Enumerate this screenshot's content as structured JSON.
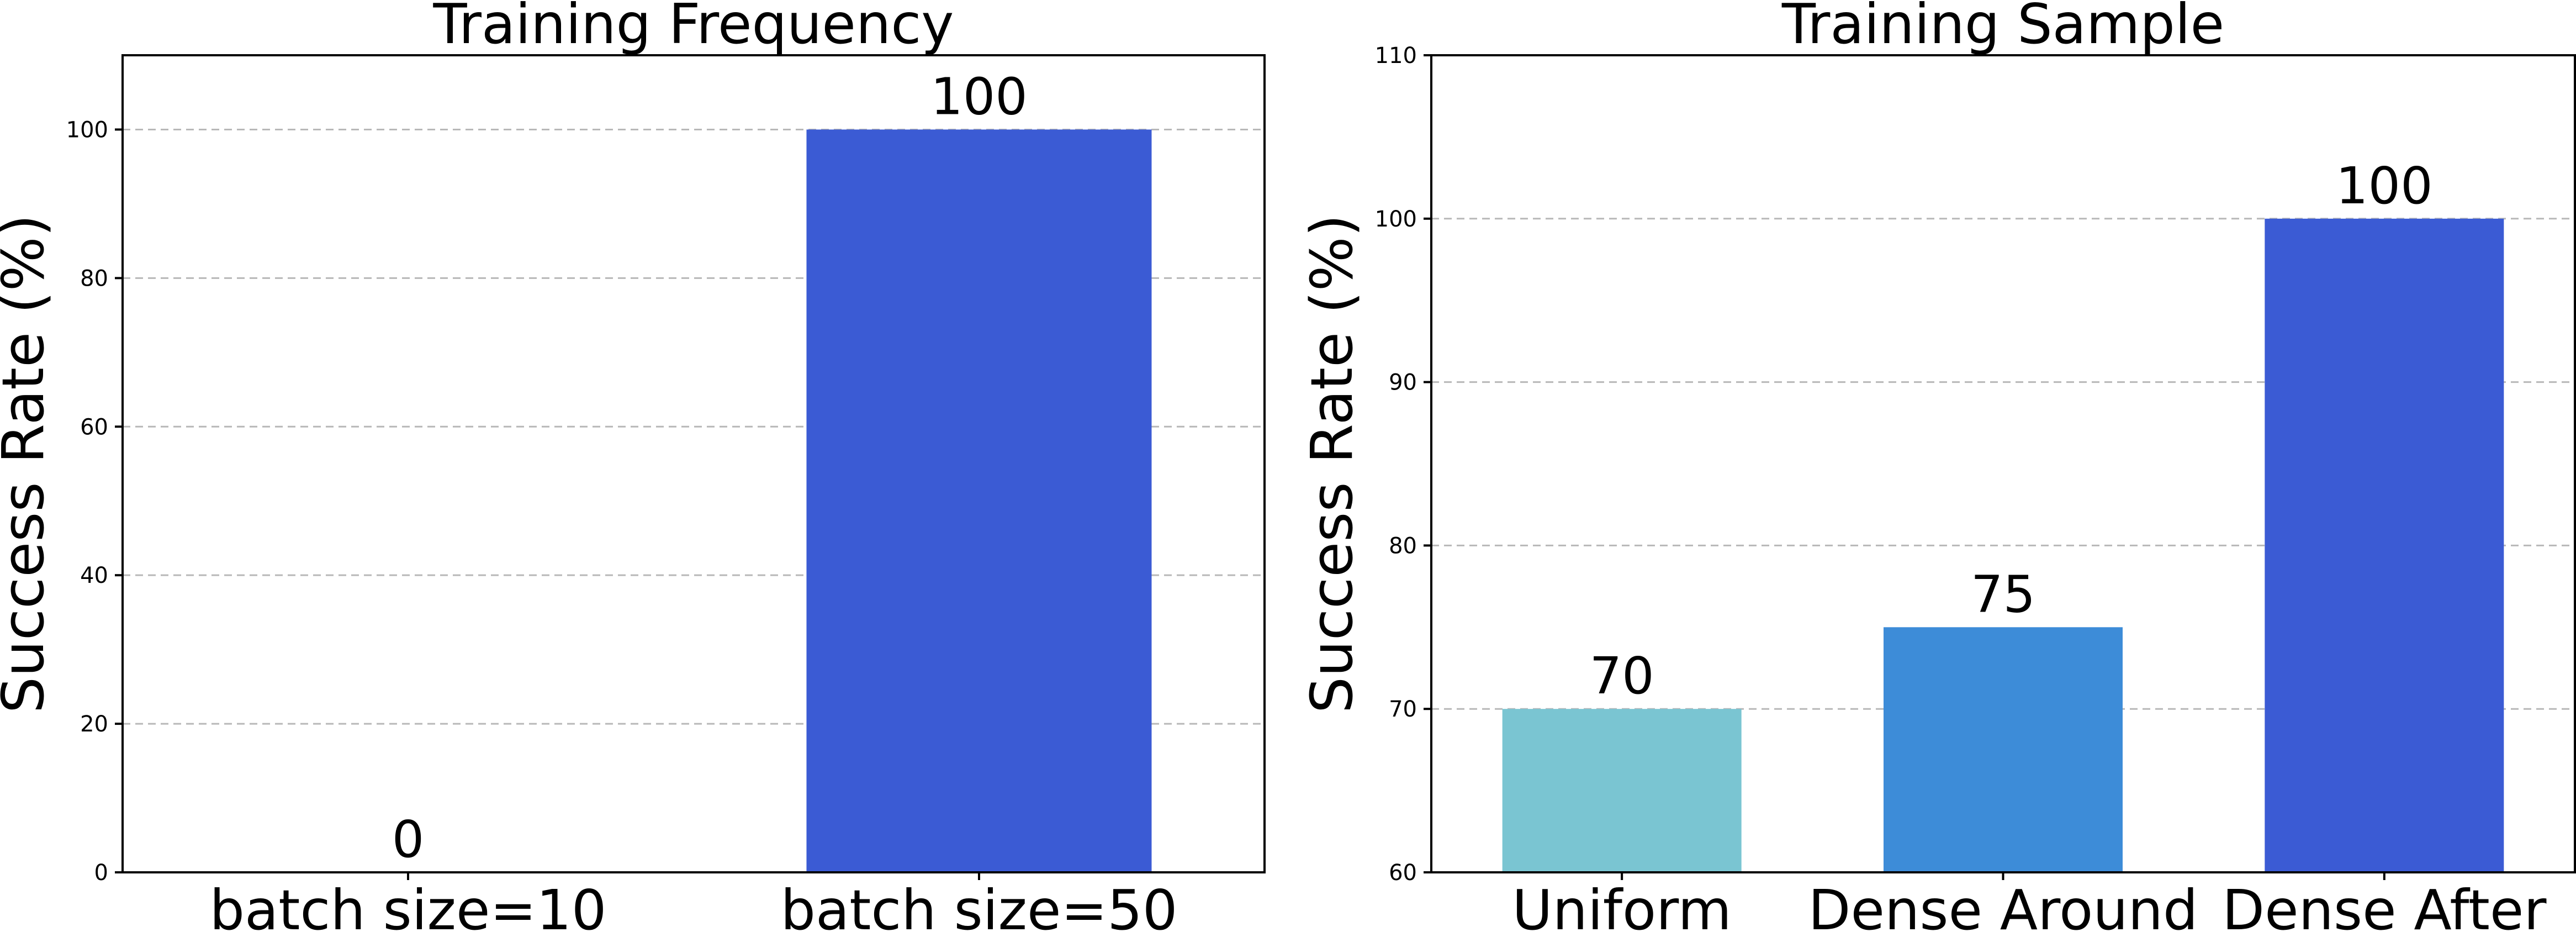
{
  "chart_data": [
    {
      "type": "bar",
      "title": "Training Frequency",
      "xlabel": "",
      "ylabel": "Success Rate (%)",
      "ylim": [
        0,
        110
      ],
      "yticks": [
        0,
        20,
        40,
        60,
        80,
        100
      ],
      "categories": [
        "batch size=10",
        "batch size=50"
      ],
      "values": [
        0,
        100
      ],
      "data_labels": [
        "0",
        "100"
      ],
      "colors": [
        "#3b5bd4",
        "#3b5bd4"
      ],
      "grid": "horizontal dashed"
    },
    {
      "type": "bar",
      "title": "Training Sample",
      "xlabel": "",
      "ylabel": "Success Rate (%)",
      "ylim": [
        60,
        110
      ],
      "yticks": [
        60,
        70,
        80,
        90,
        100,
        110
      ],
      "categories": [
        "Uniform",
        "Dense Around",
        "Dense After"
      ],
      "values": [
        70,
        75,
        100
      ],
      "data_labels": [
        "70",
        "75",
        "100"
      ],
      "colors": [
        "#7ac5d2",
        "#3d8cd8",
        "#3b5bd4"
      ],
      "grid": "horizontal dashed"
    }
  ]
}
